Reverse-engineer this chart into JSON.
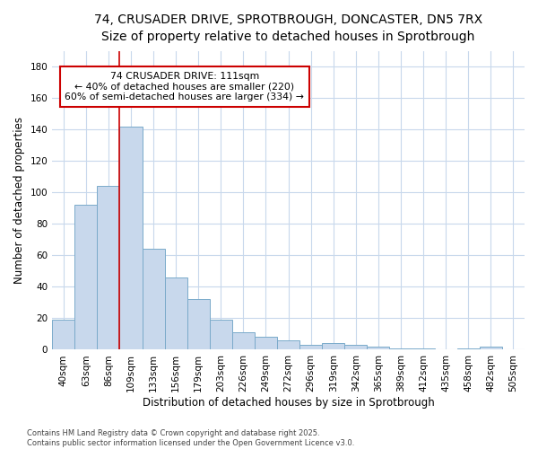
{
  "title_line1": "74, CRUSADER DRIVE, SPROTBROUGH, DONCASTER, DN5 7RX",
  "title_line2": "Size of property relative to detached houses in Sprotbrough",
  "xlabel": "Distribution of detached houses by size in Sprotbrough",
  "ylabel": "Number of detached properties",
  "categories": [
    "40sqm",
    "63sqm",
    "86sqm",
    "109sqm",
    "133sqm",
    "156sqm",
    "179sqm",
    "203sqm",
    "226sqm",
    "249sqm",
    "272sqm",
    "296sqm",
    "319sqm",
    "342sqm",
    "365sqm",
    "389sqm",
    "412sqm",
    "435sqm",
    "458sqm",
    "482sqm",
    "505sqm"
  ],
  "values": [
    19,
    92,
    104,
    142,
    64,
    46,
    32,
    19,
    11,
    8,
    6,
    3,
    4,
    3,
    2,
    1,
    1,
    0,
    1,
    2,
    0
  ],
  "bar_color": "#c8d8ec",
  "bar_edge_color": "#7aaaca",
  "bg_color": "#ffffff",
  "grid_color": "#c8d8ec",
  "vline_color": "#cc0000",
  "vline_x_index": 3,
  "annotation_text": "74 CRUSADER DRIVE: 111sqm\n← 40% of detached houses are smaller (220)\n60% of semi-detached houses are larger (334) →",
  "annotation_box_color": "#cc0000",
  "footnote": "Contains HM Land Registry data © Crown copyright and database right 2025.\nContains public sector information licensed under the Open Government Licence v3.0.",
  "ylim": [
    0,
    190
  ],
  "yticks": [
    0,
    20,
    40,
    60,
    80,
    100,
    120,
    140,
    160,
    180
  ],
  "title1_fontsize": 10,
  "title2_fontsize": 9,
  "tick_fontsize": 7.5,
  "label_fontsize": 8.5
}
